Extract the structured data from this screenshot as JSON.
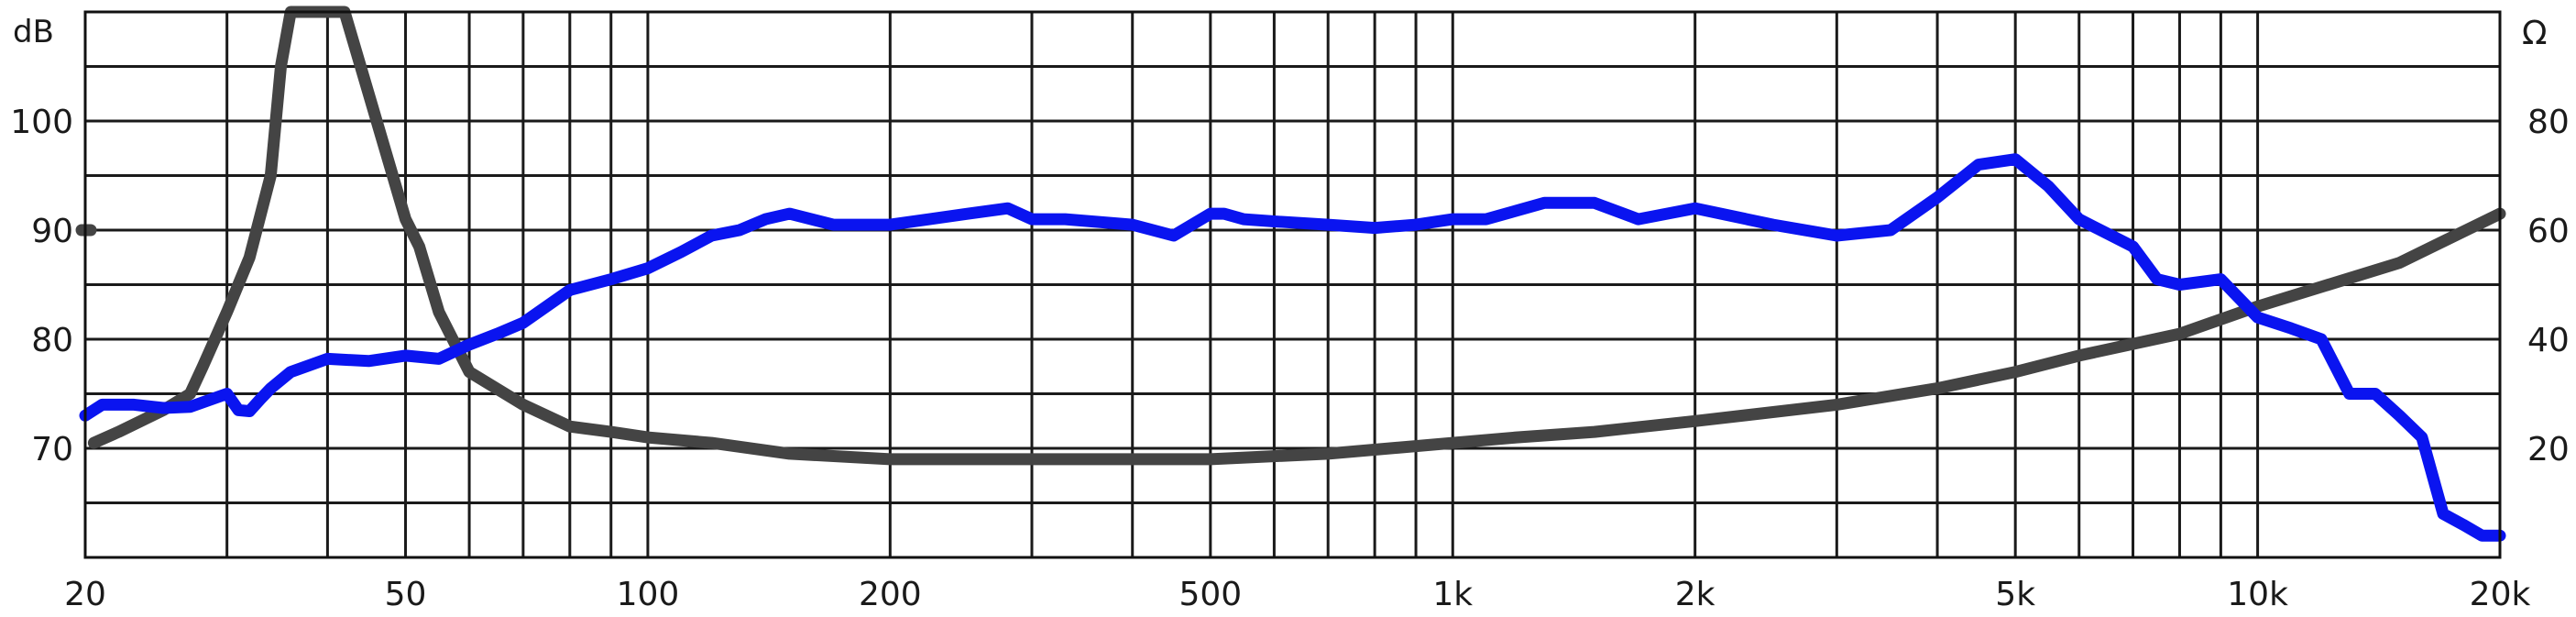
{
  "chart_data": {
    "type": "line",
    "title": "",
    "xlabel": "",
    "left_unit": "dB",
    "right_unit": "Ω",
    "x_scale": "log",
    "xlim": [
      20,
      20000
    ],
    "ylim_left": [
      60,
      110
    ],
    "ylim_right": [
      0,
      100
    ],
    "grid": true,
    "x_tick_labels": [
      {
        "value": 20,
        "label": "20"
      },
      {
        "value": 50,
        "label": "50"
      },
      {
        "value": 100,
        "label": "100"
      },
      {
        "value": 200,
        "label": "200"
      },
      {
        "value": 500,
        "label": "500"
      },
      {
        "value": 1000,
        "label": "1k"
      },
      {
        "value": 2000,
        "label": "2k"
      },
      {
        "value": 5000,
        "label": "5k"
      },
      {
        "value": 10000,
        "label": "10k"
      },
      {
        "value": 20000,
        "label": "20k"
      }
    ],
    "y_left_tick_labels": [
      {
        "value": 70,
        "label": "70"
      },
      {
        "value": 80,
        "label": "80"
      },
      {
        "value": 90,
        "label": "90"
      },
      {
        "value": 100,
        "label": "100"
      }
    ],
    "y_right_tick_labels": [
      {
        "value": 20,
        "label": "20"
      },
      {
        "value": 40,
        "label": "40"
      },
      {
        "value": 60,
        "label": "60"
      },
      {
        "value": 80,
        "label": "80"
      }
    ],
    "series": [
      {
        "color": "#0a14f0",
        "axis": "left",
        "x": [
          20,
          21,
          23,
          25,
          27,
          30,
          31,
          32,
          33,
          34,
          36,
          40,
          45,
          50,
          55,
          60,
          65,
          70,
          80,
          90,
          100,
          110,
          120,
          130,
          140,
          150,
          170,
          200,
          250,
          280,
          300,
          330,
          400,
          450,
          500,
          520,
          550,
          600,
          700,
          800,
          900,
          1000,
          1100,
          1300,
          1500,
          1700,
          2000,
          2500,
          3000,
          3500,
          4000,
          4500,
          5000,
          5500,
          6000,
          7000,
          7500,
          8000,
          9000,
          10000,
          11000,
          12000,
          13000,
          14000,
          15000,
          16000,
          17000,
          18000,
          19000,
          20000
        ],
        "values": [
          73,
          74,
          74,
          73.7,
          73.8,
          75,
          73.5,
          73.4,
          74.5,
          75.5,
          77,
          78.2,
          78,
          78.5,
          78.2,
          79.5,
          80.5,
          81.5,
          84.5,
          85.5,
          86.5,
          88,
          89.5,
          90,
          91,
          91.5,
          90.5,
          90.5,
          91.5,
          92,
          91,
          91,
          90.5,
          89.5,
          91.5,
          91.5,
          91,
          90.8,
          90.5,
          90.2,
          90.5,
          91,
          91,
          92.5,
          92.5,
          91,
          92,
          90.5,
          89.5,
          90,
          93,
          96,
          96.5,
          94,
          91,
          88.5,
          85.5,
          85,
          85.5,
          82,
          81,
          80,
          75,
          75,
          73,
          71,
          64,
          63,
          62,
          62
        ]
      },
      {
        "color": "#444444",
        "axis": "right",
        "x": [
          20.5,
          22,
          25,
          27,
          28,
          30,
          32,
          34,
          35,
          36,
          38,
          42,
          45,
          50,
          52,
          55,
          60,
          70,
          80,
          90,
          100,
          120,
          150,
          200,
          300,
          500,
          700,
          1000,
          1200,
          1500,
          2000,
          3000,
          4000,
          5000,
          6000,
          8000,
          10000,
          15000,
          20000
        ],
        "values": [
          21,
          23,
          27,
          30,
          35,
          45,
          55,
          70,
          90,
          100,
          100,
          100,
          85,
          62,
          57,
          45,
          34,
          28,
          24,
          23,
          22,
          21,
          19,
          18,
          18,
          18,
          19,
          21,
          22,
          23,
          25,
          28,
          31,
          34,
          37,
          41,
          46,
          54,
          63
        ]
      }
    ]
  }
}
